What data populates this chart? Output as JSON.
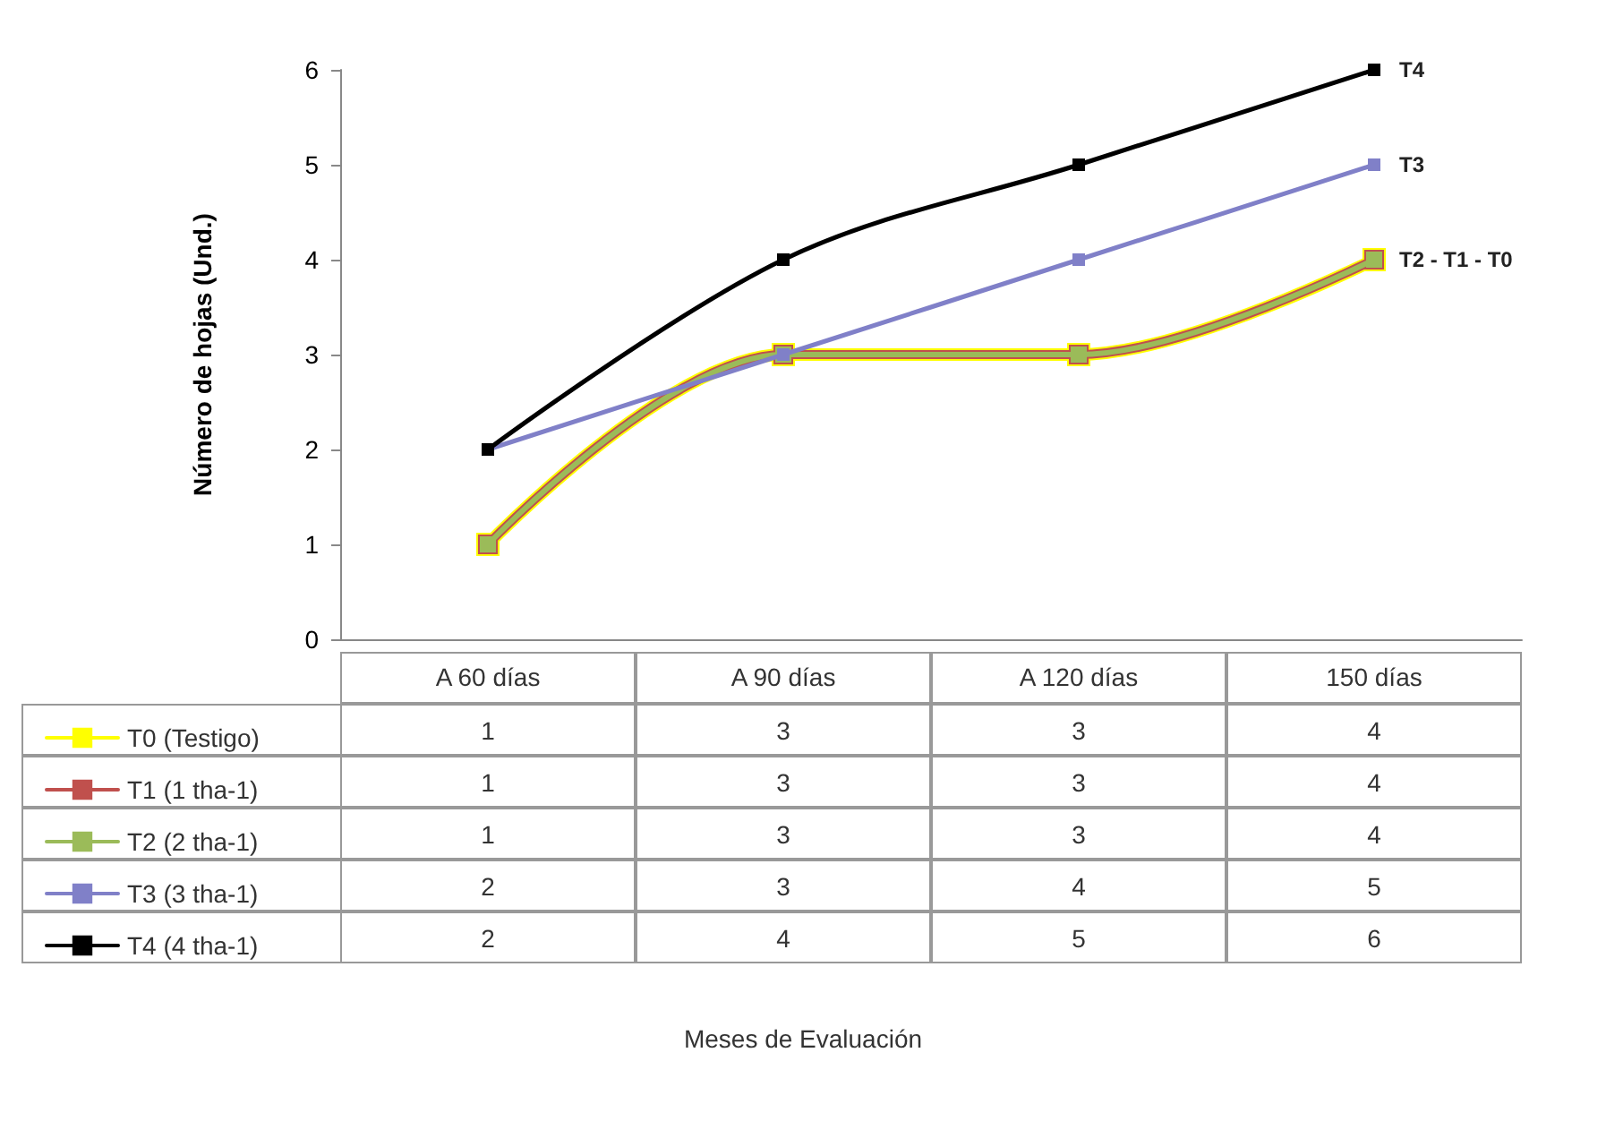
{
  "chart_data": {
    "type": "line",
    "ylabel": "Número de hojas (Und.)",
    "categories": [
      "A 60 días",
      "A 90 días",
      "A 120 días",
      "150 días"
    ],
    "series": [
      {
        "name": "T0 (Testigo)",
        "color": "#ffff00",
        "values": [
          1,
          3,
          3,
          4
        ]
      },
      {
        "name": "T1 (1 tha-1)",
        "color": "#c0504d",
        "values": [
          1,
          3,
          3,
          4
        ]
      },
      {
        "name": "T2 (2 tha-1)",
        "color": "#9bbb59",
        "values": [
          1,
          3,
          3,
          4
        ]
      },
      {
        "name": "T3 (3 tha-1)",
        "color": "#8080c8",
        "values": [
          2,
          3,
          4,
          5
        ]
      },
      {
        "name": "T4 (4 tha-1)",
        "color": "#000000",
        "values": [
          2,
          4,
          5,
          6
        ]
      }
    ],
    "ylim": [
      0,
      6
    ],
    "yticks": [
      0,
      1,
      2,
      3,
      4,
      5,
      6
    ],
    "grid": false,
    "legend": "bottom left",
    "marker": "square",
    "line_style": "solid",
    "data_labels": true,
    "annotations": [
      {
        "text": "T4",
        "x": "150 días",
        "y": 6
      },
      {
        "text": "T3",
        "x": "150 días",
        "y": 5
      },
      {
        "text": "T2 - T1 - T0",
        "x": "150 días",
        "y": 4
      },
      "Meses de Evaluación"
    ]
  }
}
